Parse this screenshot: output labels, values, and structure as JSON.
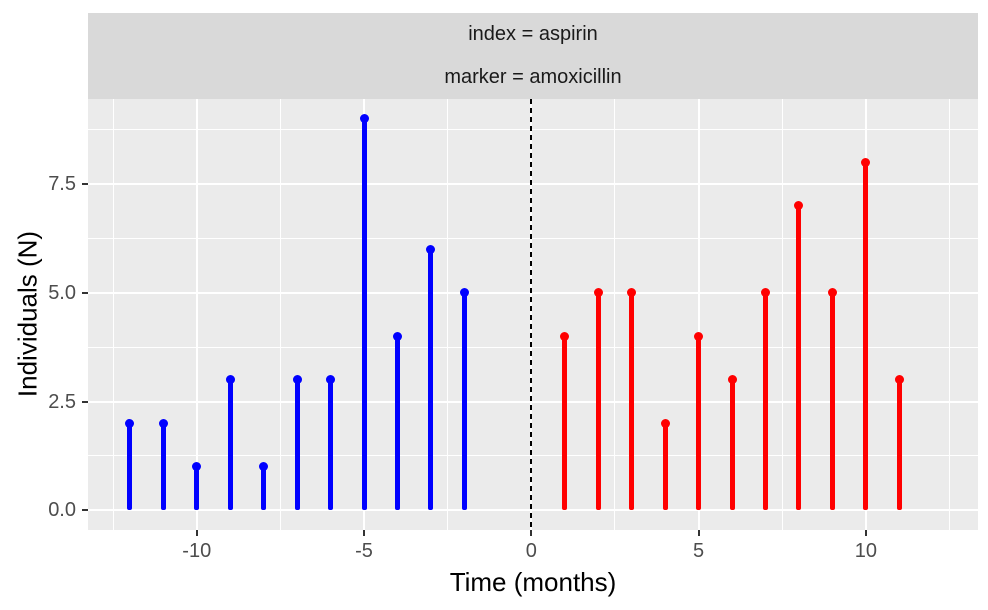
{
  "chart_data": {
    "type": "bar",
    "style": "lollipop",
    "title": "",
    "facet_labels": [
      "index = aspirin",
      "marker = amoxicillin"
    ],
    "xlabel": "Time (months)",
    "ylabel": "Individuals (N)",
    "xlim": [
      -13.25,
      13.35
    ],
    "ylim": [
      -0.45,
      9.45
    ],
    "x_ticks": [
      {
        "value": -10,
        "label": "-10"
      },
      {
        "value": -5,
        "label": "-5"
      },
      {
        "value": 0,
        "label": "0"
      },
      {
        "value": 5,
        "label": "5"
      },
      {
        "value": 10,
        "label": "10"
      }
    ],
    "y_ticks": [
      {
        "value": 0,
        "label": "0.0"
      },
      {
        "value": 2.5,
        "label": "2.5"
      },
      {
        "value": 5,
        "label": "5.0"
      },
      {
        "value": 7.5,
        "label": "7.5"
      }
    ],
    "x_minor": [
      -12.5,
      -7.5,
      -2.5,
      2.5,
      7.5,
      12.5
    ],
    "y_minor": [
      1.25,
      3.75,
      6.25,
      8.75
    ],
    "series": [
      {
        "name": "index (aspirin)",
        "color": "#0000FF",
        "x": [
          -12,
          -11,
          -10,
          -9,
          -8,
          -7,
          -6,
          -5,
          -4,
          -3,
          -2
        ],
        "y": [
          2,
          2,
          1,
          3,
          1,
          3,
          3,
          9,
          4,
          6,
          5
        ]
      },
      {
        "name": "marker (amoxicillin)",
        "color": "#FF0000",
        "x": [
          1,
          2,
          3,
          4,
          5,
          6,
          7,
          8,
          9,
          10,
          11
        ],
        "y": [
          4,
          5,
          5,
          2,
          4,
          3,
          5,
          7,
          5,
          8,
          3
        ]
      }
    ],
    "reference_line": {
      "x": 0,
      "style": "dashed",
      "color": "#000000"
    },
    "baseline": 0,
    "grid": true,
    "legend": "none",
    "colors": {
      "panel_bg": "#EBEBEB",
      "strip_bg": "#D9D9D9",
      "grid": "#FFFFFF",
      "axis_text": "#4D4D4D",
      "title_text": "#000000"
    }
  }
}
